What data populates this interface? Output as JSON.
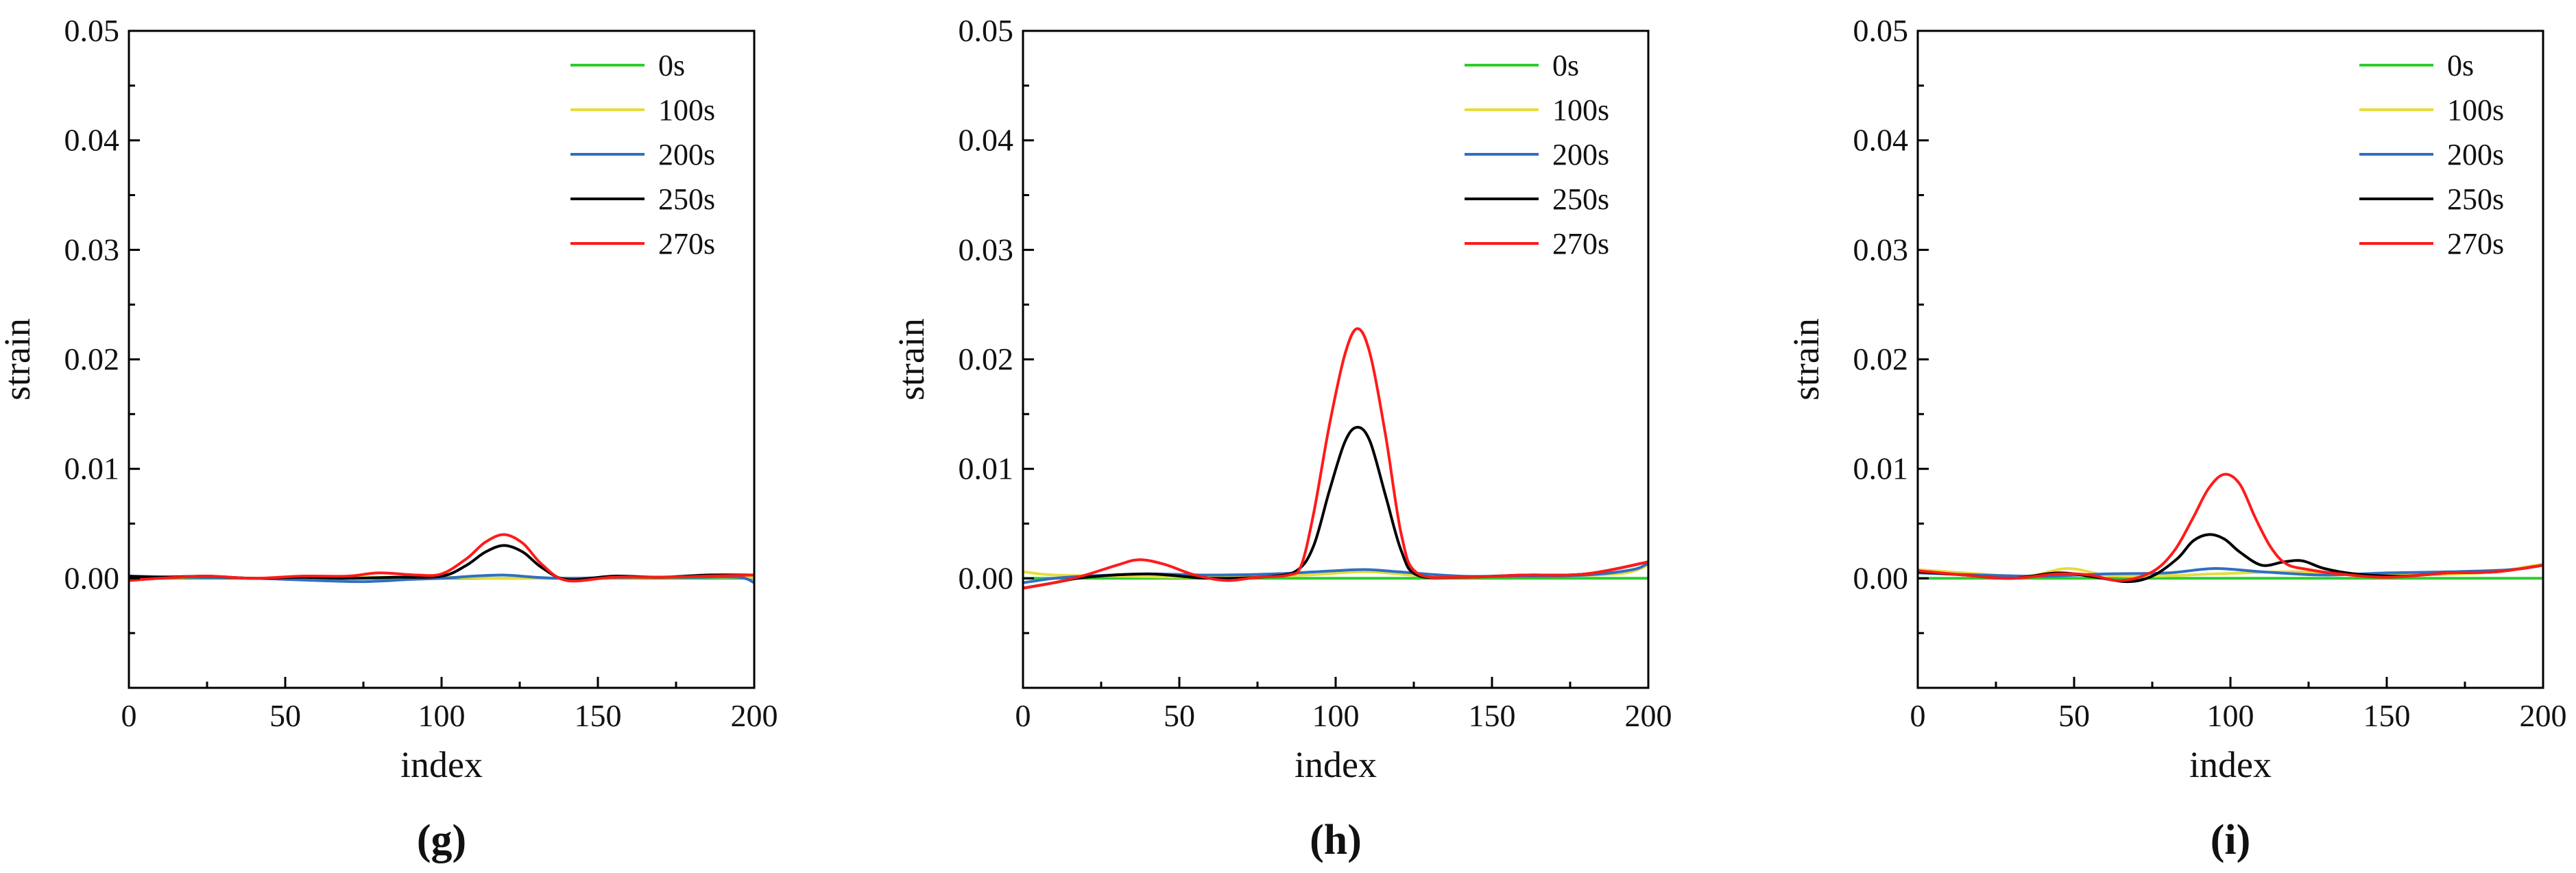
{
  "figure": {
    "series_colors": {
      "0s": "#2ecc2e",
      "100s": "#e6dc3c",
      "200s": "#2f6fc4",
      "250s": "#000000",
      "270s": "#ff1a1a"
    }
  },
  "chart_data": [
    {
      "type": "line",
      "panel_label": "(g)",
      "xlabel": "index",
      "ylabel": "strain",
      "xlim": [
        0,
        200
      ],
      "ylim": [
        -0.01,
        0.05
      ],
      "xticks": [
        0,
        50,
        100,
        150,
        200
      ],
      "xtick_labels": [
        "0",
        "50",
        "100",
        "150",
        "200"
      ],
      "yticks": [
        0,
        0.01,
        0.02,
        0.03,
        0.04,
        0.05
      ],
      "ytick_labels": [
        "0.00",
        "0.01",
        "0.02",
        "0.03",
        "0.04",
        "0.05"
      ],
      "legend_position": "top-right",
      "series": [
        {
          "name": "0s",
          "x": [
            0,
            200
          ],
          "y": [
            0,
            0
          ]
        },
        {
          "name": "100s",
          "x": [
            0,
            20,
            50,
            80,
            100,
            120,
            140,
            170,
            200
          ],
          "y": [
            0.0001,
            0.0001,
            0,
            0.0001,
            0.0001,
            0,
            0,
            0.0001,
            0.0001
          ]
        },
        {
          "name": "200s",
          "x": [
            0,
            20,
            40,
            60,
            75,
            90,
            100,
            110,
            120,
            130,
            140,
            160,
            180,
            195,
            200
          ],
          "y": [
            0.0002,
            0.0001,
            0,
            -0.0002,
            -0.0003,
            -0.0001,
            0,
            0.0002,
            0.0003,
            0.0001,
            0,
            0.0001,
            0.0001,
            0.0001,
            -0.0004
          ]
        },
        {
          "name": "250s",
          "x": [
            0,
            10,
            25,
            40,
            55,
            70,
            85,
            100,
            108,
            114,
            120,
            126,
            132,
            140,
            155,
            170,
            185,
            200
          ],
          "y": [
            0.0002,
            0.0001,
            0.0002,
            0,
            0.0001,
            0,
            0.0001,
            0.0002,
            0.0012,
            0.0024,
            0.003,
            0.0024,
            0.001,
            -0.0001,
            0.0002,
            0.0001,
            0.0003,
            0.0003
          ]
        },
        {
          "name": "270s",
          "x": [
            0,
            10,
            25,
            40,
            55,
            70,
            80,
            92,
            100,
            108,
            114,
            120,
            126,
            132,
            140,
            155,
            170,
            185,
            200
          ],
          "y": [
            -0.0002,
            0,
            0.0002,
            0,
            0.0002,
            0.0002,
            0.0005,
            0.0003,
            0.0004,
            0.0018,
            0.0033,
            0.004,
            0.0032,
            0.0013,
            -0.0002,
            0.0001,
            0.0001,
            0.0002,
            0.0003
          ]
        }
      ]
    },
    {
      "type": "line",
      "panel_label": "(h)",
      "xlabel": "index",
      "ylabel": "strain",
      "xlim": [
        0,
        200
      ],
      "ylim": [
        -0.01,
        0.05
      ],
      "xticks": [
        0,
        50,
        100,
        150,
        200
      ],
      "xtick_labels": [
        "0",
        "50",
        "100",
        "150",
        "200"
      ],
      "yticks": [
        0,
        0.01,
        0.02,
        0.03,
        0.04,
        0.05
      ],
      "ytick_labels": [
        "0.00",
        "0.01",
        "0.02",
        "0.03",
        "0.04",
        "0.05"
      ],
      "legend_position": "top-right",
      "series": [
        {
          "name": "0s",
          "x": [
            0,
            200
          ],
          "y": [
            0,
            0
          ]
        },
        {
          "name": "100s",
          "x": [
            0,
            10,
            30,
            60,
            90,
            110,
            130,
            160,
            190,
            200
          ],
          "y": [
            0.0006,
            0.0003,
            0.0002,
            0.0001,
            0.0003,
            0.0006,
            0.0002,
            0.0002,
            0.0004,
            0.0012
          ]
        },
        {
          "name": "200s",
          "x": [
            0,
            10,
            20,
            40,
            60,
            80,
            100,
            110,
            120,
            140,
            160,
            180,
            195,
            200
          ],
          "y": [
            -0.0004,
            0,
            0.0002,
            0.0004,
            0.0003,
            0.0004,
            0.0007,
            0.0008,
            0.0006,
            0.0002,
            0.0002,
            0.0003,
            0.0008,
            0.0014
          ]
        },
        {
          "name": "250s",
          "x": [
            0,
            10,
            20,
            40,
            60,
            80,
            88,
            93,
            98,
            103,
            107,
            111,
            116,
            121,
            126,
            140,
            160,
            180,
            200
          ],
          "y": [
            -0.0009,
            -0.0004,
            0.0001,
            0.0004,
            0,
            0.0002,
            0.0008,
            0.003,
            0.008,
            0.0125,
            0.0138,
            0.0125,
            0.0075,
            0.0025,
            0.0003,
            0.0001,
            0.0003,
            0.0004,
            0.0015
          ]
        },
        {
          "name": "270s",
          "x": [
            0,
            10,
            20,
            30,
            37,
            45,
            55,
            65,
            75,
            85,
            89,
            93,
            98,
            103,
            107,
            111,
            116,
            121,
            126,
            140,
            160,
            180,
            200
          ],
          "y": [
            -0.0009,
            -0.0004,
            0.0003,
            0.0012,
            0.0017,
            0.0013,
            0.0003,
            -0.0002,
            0.0001,
            0.0003,
            0.0012,
            0.006,
            0.014,
            0.0205,
            0.0228,
            0.0205,
            0.013,
            0.004,
            0.0005,
            0.0001,
            0.0003,
            0.0004,
            0.0015
          ]
        }
      ]
    },
    {
      "type": "line",
      "panel_label": "(i)",
      "xlabel": "index",
      "ylabel": "strain",
      "xlim": [
        0,
        200
      ],
      "ylim": [
        -0.01,
        0.05
      ],
      "xticks": [
        0,
        50,
        100,
        150,
        200
      ],
      "xtick_labels": [
        "0",
        "50",
        "100",
        "150",
        "200"
      ],
      "yticks": [
        0,
        0.01,
        0.02,
        0.03,
        0.04,
        0.05
      ],
      "ytick_labels": [
        "0.00",
        "0.01",
        "0.02",
        "0.03",
        "0.04",
        "0.05"
      ],
      "legend_position": "top-right",
      "series": [
        {
          "name": "0s",
          "x": [
            0,
            200
          ],
          "y": [
            0,
            0
          ]
        },
        {
          "name": "100s",
          "x": [
            0,
            20,
            35,
            48,
            60,
            75,
            95,
            120,
            150,
            180,
            200
          ],
          "y": [
            0.0008,
            0.0004,
            0.0002,
            0.0009,
            0.0003,
            0.0002,
            0.0004,
            0.0006,
            0.0003,
            0.0005,
            0.0013
          ]
        },
        {
          "name": "200s",
          "x": [
            0,
            20,
            40,
            60,
            80,
            95,
            110,
            130,
            150,
            170,
            190,
            200
          ],
          "y": [
            0.0005,
            0.0003,
            0.0002,
            0.0004,
            0.0005,
            0.0009,
            0.0006,
            0.0003,
            0.0005,
            0.0006,
            0.0008,
            0.0012
          ]
        },
        {
          "name": "250s",
          "x": [
            0,
            15,
            30,
            45,
            57,
            67,
            75,
            83,
            88,
            93,
            98,
            103,
            110,
            117,
            123,
            130,
            140,
            155,
            170,
            185,
            200
          ],
          "y": [
            0.0006,
            0.0003,
            0,
            0.0005,
            0.0001,
            -0.0003,
            0.0002,
            0.0018,
            0.0034,
            0.004,
            0.0036,
            0.0024,
            0.0012,
            0.0015,
            0.0016,
            0.0009,
            0.0004,
            0.0002,
            0.0005,
            0.0006,
            0.0012
          ]
        },
        {
          "name": "270s",
          "x": [
            0,
            15,
            30,
            45,
            55,
            65,
            75,
            82,
            88,
            93,
            98,
            103,
            108,
            113,
            118,
            125,
            135,
            150,
            170,
            185,
            200
          ],
          "y": [
            0.0007,
            0.0003,
            0,
            0.0004,
            0.0003,
            -0.0002,
            0.0006,
            0.0025,
            0.0055,
            0.0082,
            0.0095,
            0.0086,
            0.0055,
            0.0028,
            0.0013,
            0.0008,
            0.0004,
            0.0001,
            0.0005,
            0.0006,
            0.0012
          ]
        }
      ]
    }
  ]
}
